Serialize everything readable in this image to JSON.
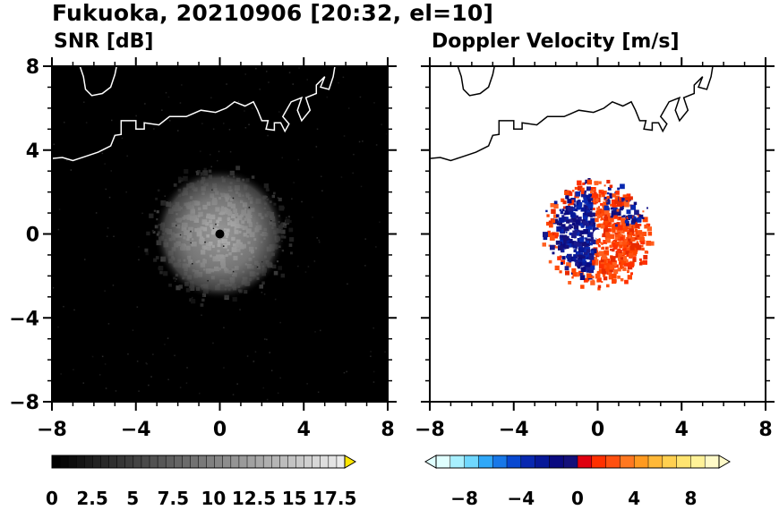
{
  "header": {
    "title": "Fukuoka, 20210906 [20:32, el=10]"
  },
  "chart_data": [
    {
      "type": "heatmap",
      "title": "SNR [dB]",
      "xlim": [
        -8,
        8
      ],
      "ylim": [
        -8,
        8
      ],
      "xticks": [
        "−8",
        "−4",
        "0",
        "4",
        "8"
      ],
      "yticks": [
        "8",
        "4",
        "0",
        "−4",
        "−8"
      ],
      "background": "#000000",
      "echo": {
        "center": [
          0,
          0
        ],
        "radius_km": 3.3,
        "max_snr_db": 10
      },
      "colorbar": {
        "min": 0,
        "max": 17.5,
        "step": 2.5,
        "labels": [
          "0",
          "2.5",
          "5",
          "7.5",
          "10",
          "12.5",
          "15",
          "17.5"
        ],
        "extend_color": "#ffe600"
      }
    },
    {
      "type": "heatmap",
      "title": "Doppler Velocity [m/s]",
      "xlim": [
        -8,
        8
      ],
      "ylim": [
        -8,
        8
      ],
      "xticks": [
        "−8",
        "−4",
        "0",
        "4",
        "8"
      ],
      "yticks": [],
      "background": "#ffffff",
      "echo": {
        "center": [
          0,
          0
        ],
        "radius_km": 2.4,
        "approach_color": "#1a1a8c",
        "recede_color": "#ff4400"
      },
      "colorbar": {
        "min": -10,
        "max": 10,
        "labels": [
          "−8",
          "−4",
          "0",
          "4",
          "8"
        ],
        "label_values": [
          -8,
          -4,
          0,
          4,
          8
        ],
        "colors": [
          "#e0ffff",
          "#a8f0ff",
          "#70d8ff",
          "#30a8f8",
          "#1878e8",
          "#0848d0",
          "#0828b0",
          "#061898",
          "#0a0a80",
          "#14107a",
          "#e00010",
          "#ff3000",
          "#ff5010",
          "#ff7820",
          "#ff9a20",
          "#ffb838",
          "#ffd050",
          "#ffe470",
          "#fff298",
          "#fffac8"
        ]
      }
    }
  ]
}
